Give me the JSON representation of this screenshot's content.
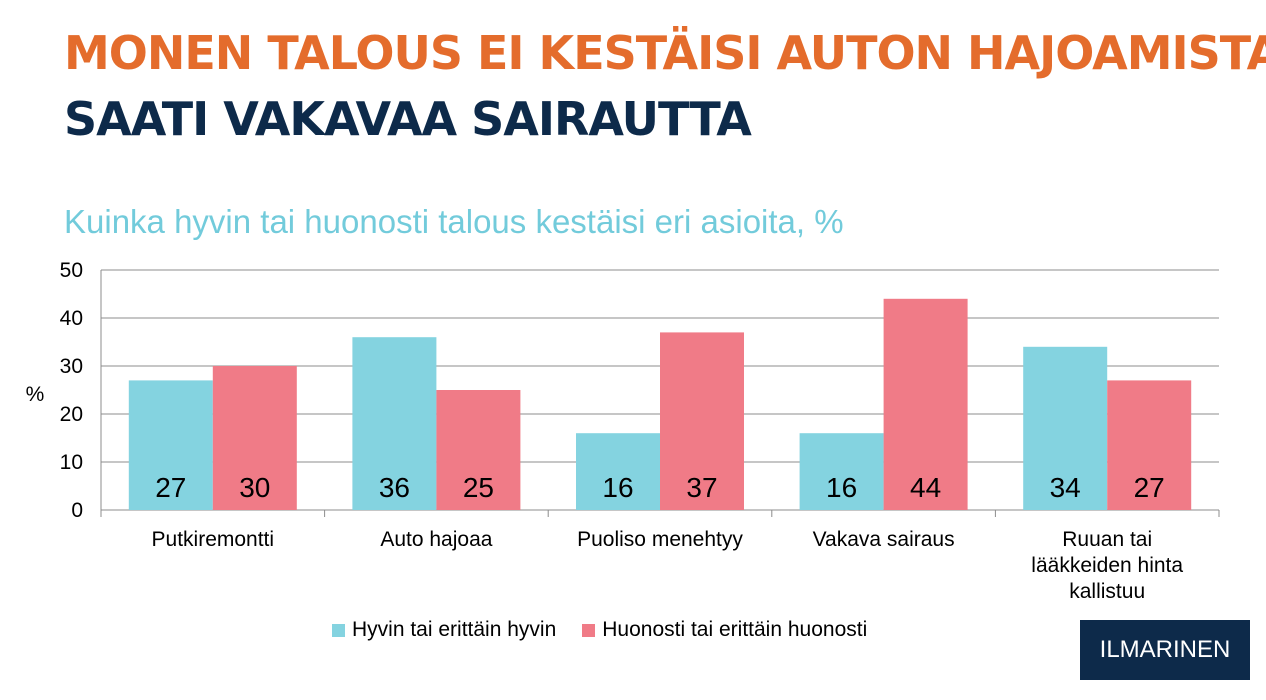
{
  "header": {
    "title_line1": "MONEN TALOUS EI KESTÄISI AUTON HAJOAMISTA",
    "title_line2": "SAATI VAKAVAA SAIRAUTTA"
  },
  "logo": {
    "text": "ILMARINEN",
    "background": "#0d2a4a"
  },
  "chart_data": {
    "type": "bar",
    "title": "Kuinka hyvin tai huonosti talous kestäisi eri asioita, %",
    "ylabel": "%",
    "xlabel": "",
    "ylim": [
      0,
      50
    ],
    "yticks": [
      "0",
      "10",
      "20",
      "30",
      "40",
      "50"
    ],
    "grid": true,
    "legend_position": "bottom",
    "categories": [
      [
        "Putkiremontti"
      ],
      [
        "Auto hajoaa"
      ],
      [
        "Puoliso menehtyy"
      ],
      [
        "Vakava sairaus"
      ],
      [
        "Ruuan tai",
        "lääkkeiden hinta",
        "kallistuu"
      ]
    ],
    "series": [
      {
        "name": "Hyvin tai erittäin hyvin",
        "color": "#84d3e0",
        "values": [
          27,
          36,
          16,
          16,
          34
        ]
      },
      {
        "name": "Huonosti tai erittäin huonosti",
        "color": "#f07b87",
        "values": [
          30,
          25,
          37,
          44,
          27
        ]
      }
    ]
  },
  "colors": {
    "title_orange": "#e46c2c",
    "title_navy": "#0d2a4a",
    "subtitle_teal": "#72cbdb"
  }
}
